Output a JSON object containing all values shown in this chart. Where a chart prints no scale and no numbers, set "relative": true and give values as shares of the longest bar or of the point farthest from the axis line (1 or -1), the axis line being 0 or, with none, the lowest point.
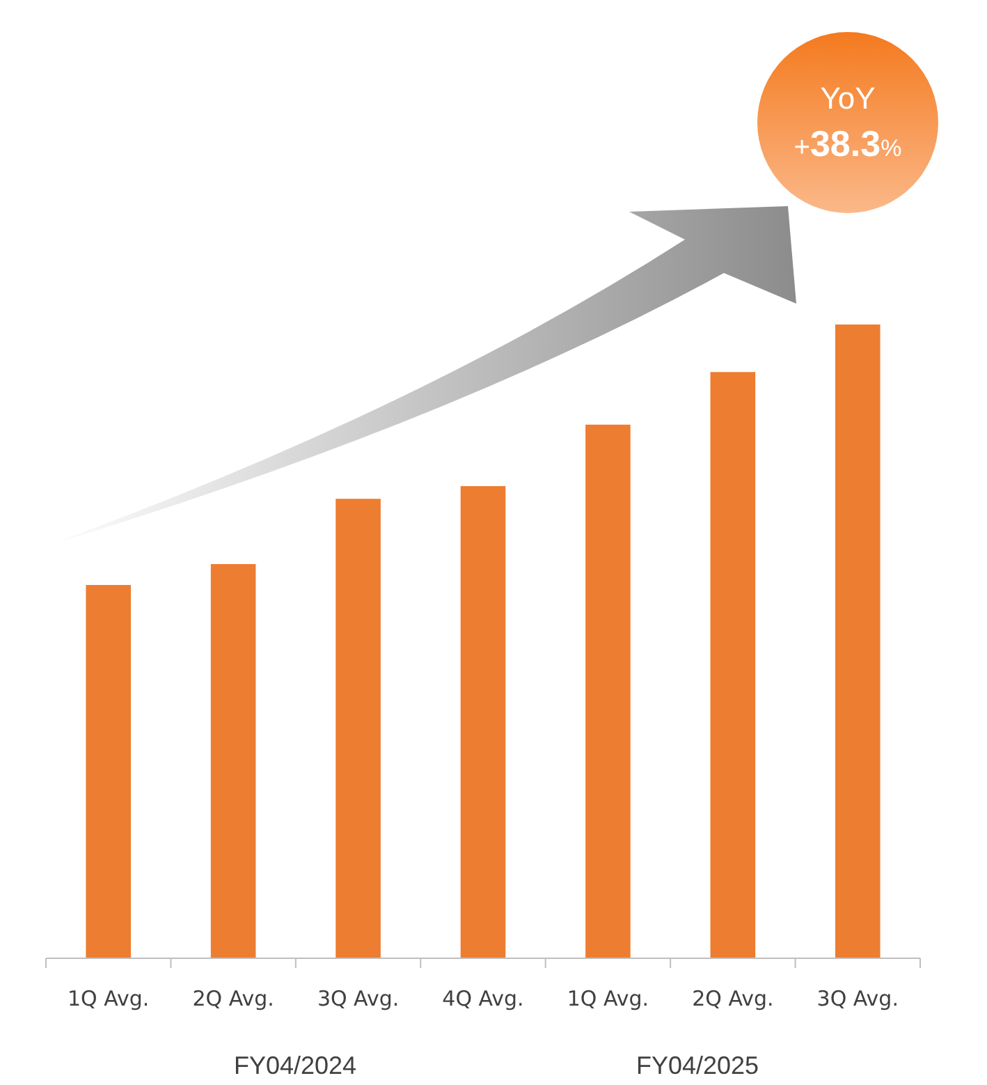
{
  "chart_data": {
    "type": "bar",
    "relative": true,
    "categories": [
      "1Q Avg.",
      "2Q Avg.",
      "3Q Avg.",
      "4Q Avg.",
      "1Q Avg.",
      "2Q Avg.",
      "3Q Avg."
    ],
    "values": [
      0.589,
      0.622,
      0.725,
      0.745,
      0.842,
      0.925,
      1
    ],
    "color": "#ed7d31",
    "annotations": [
      "YoY",
      "+38.3%",
      "FY04/2024",
      "FY04/2025"
    ]
  }
}
